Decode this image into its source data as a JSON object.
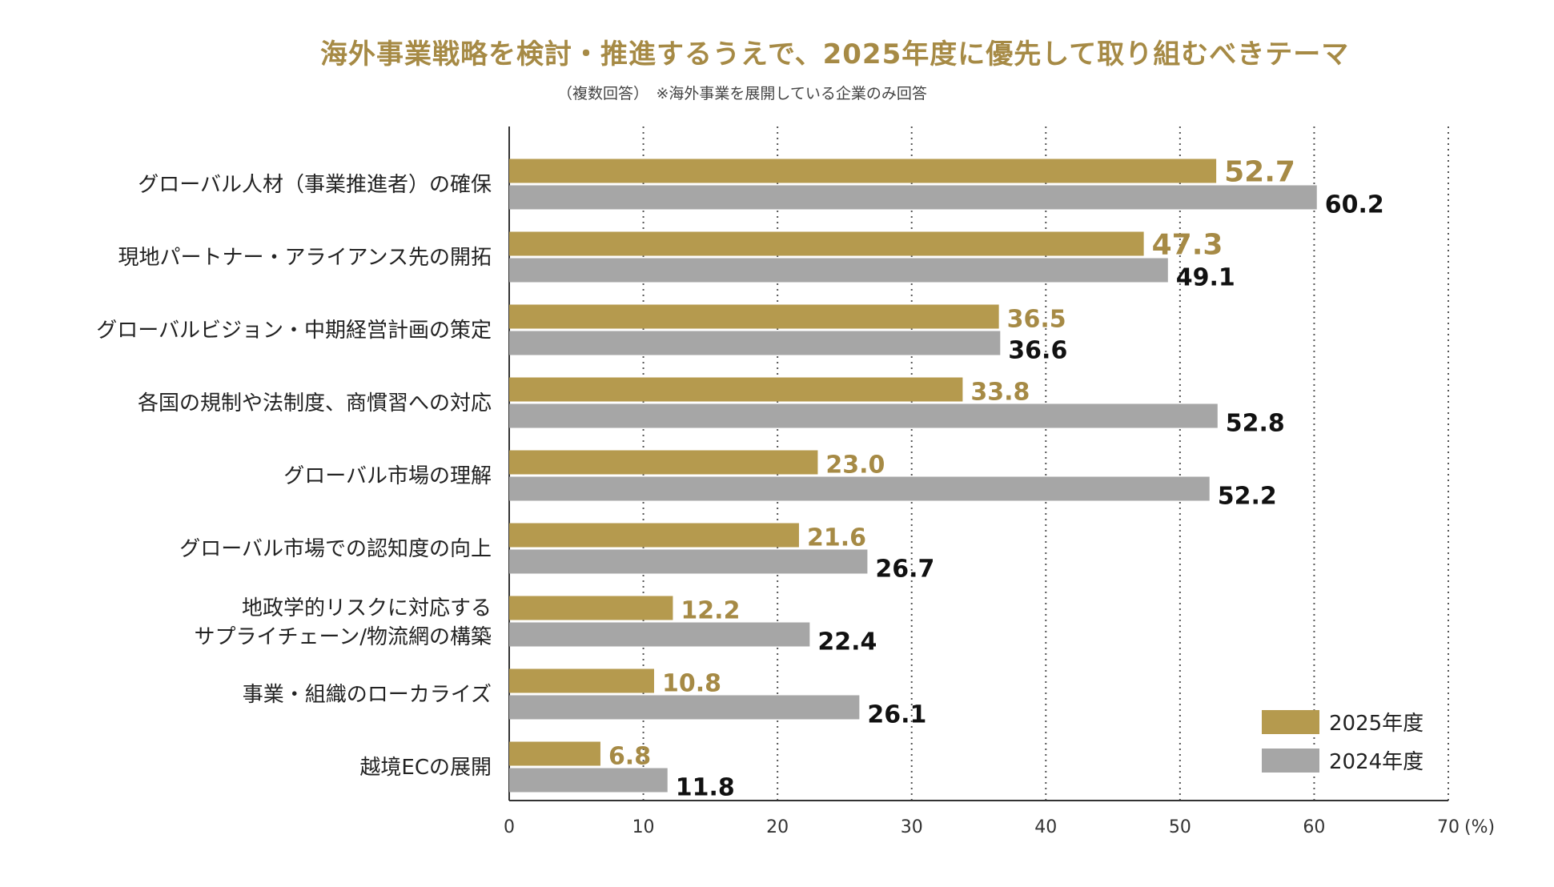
{
  "title": "海外事業戦略を検討・推進するうえで、2025年度に優先して取り組むべきテーマ",
  "subtitle": "（複数回答）　※海外事業を展開している企業のみ回答",
  "colors": {
    "s2025": "#b59a4e",
    "s2024": "#a6a6a6",
    "label2025": "#a68a45",
    "label2024": "#111111"
  },
  "chart_data": {
    "type": "bar",
    "orientation": "horizontal",
    "categories": [
      [
        "グローバル人材（事業推進者）の確保"
      ],
      [
        "現地パートナー・アライアンス先の開拓"
      ],
      [
        "グローバルビジョン・中期経営計画の策定"
      ],
      [
        "各国の規制や法制度、商慣習への対応"
      ],
      [
        "グローバル市場の理解"
      ],
      [
        "グローバル市場での認知度の向上"
      ],
      [
        "地政学的リスクに対応する",
        "サプライチェーン/物流網の構築"
      ],
      [
        "事業・組織のローカライズ"
      ],
      [
        "越境ECの展開"
      ]
    ],
    "series": [
      {
        "name": "2025年度",
        "values": [
          52.7,
          47.3,
          36.5,
          33.8,
          23.0,
          21.6,
          12.2,
          10.8,
          6.8
        ],
        "labels": [
          "52.7",
          "47.3",
          "36.5",
          "33.8",
          "23.0",
          "21.6",
          "12.2",
          "10.8",
          "6.8"
        ]
      },
      {
        "name": "2024年度",
        "values": [
          60.2,
          49.1,
          36.6,
          52.8,
          52.2,
          26.7,
          22.4,
          26.1,
          11.8
        ],
        "labels": [
          "60.2",
          "49.1",
          "36.6",
          "52.8",
          "52.2",
          "26.7",
          "22.4",
          "26.1",
          "11.8"
        ]
      }
    ],
    "xlim": [
      0,
      70
    ],
    "xticks": [
      "0",
      "10",
      "20",
      "30",
      "40",
      "50",
      "60",
      "70"
    ],
    "unit": "(%)",
    "grid": "dotted vertical",
    "legend": "bottom-right"
  }
}
